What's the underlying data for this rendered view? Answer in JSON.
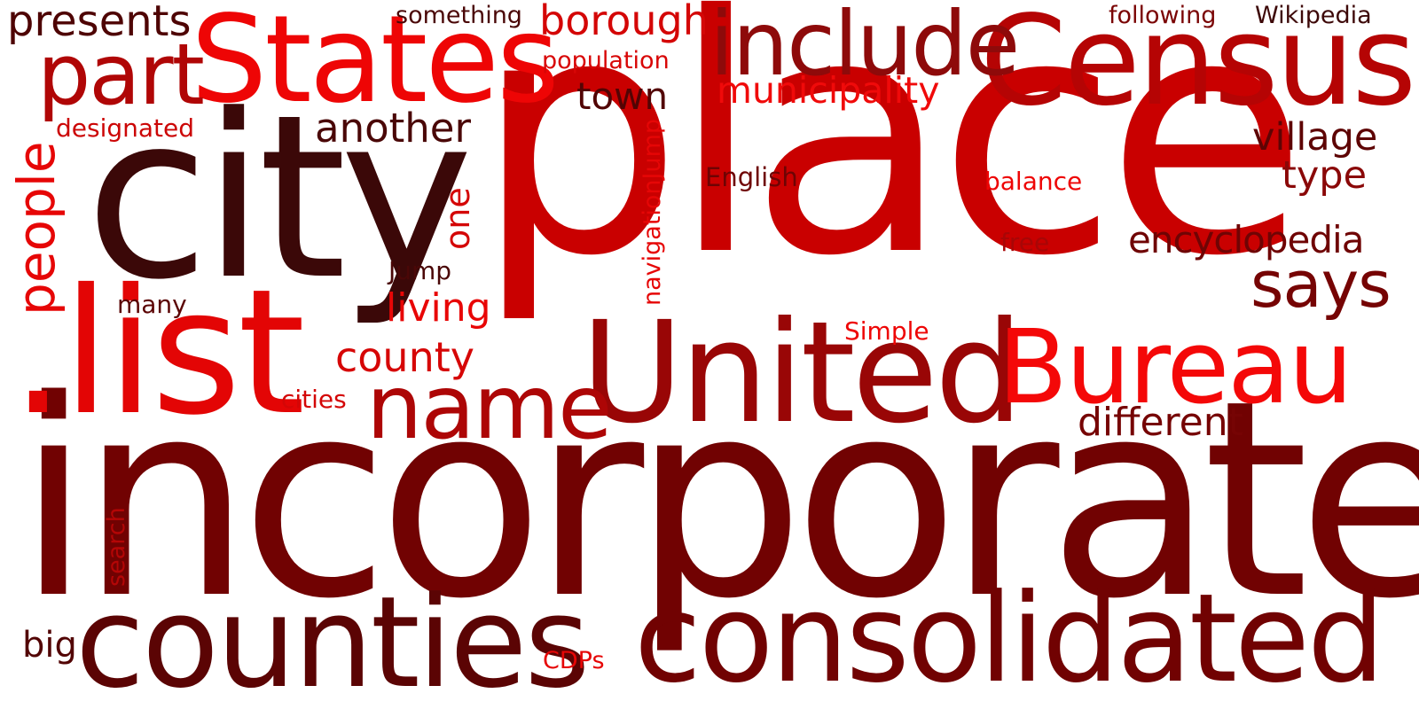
{
  "palette": {
    "dark_brown": "#3d0808",
    "maroon": "#6e0202",
    "dark_red": "#8e0a0a",
    "red": "#c30606",
    "bright_red": "#e50606",
    "scarlet": "#f00808"
  },
  "words": [
    {
      "key": "place",
      "text": "place",
      "color": "#c90000"
    },
    {
      "key": "incorporated",
      "text": "incorporated",
      "color": "#710202"
    },
    {
      "key": "city",
      "text": "city",
      "color": "#3b0808"
    },
    {
      "key": "states",
      "text": "States",
      "color": "#ee0505"
    },
    {
      "key": "census",
      "text": "Census",
      "color": "#b50404"
    },
    {
      "key": "united",
      "text": "United",
      "color": "#990606"
    },
    {
      "key": "list",
      "text": ".list",
      "color": "#e30505"
    },
    {
      "key": "bureau",
      "text": "Bureau",
      "color": "#f40808"
    },
    {
      "key": "consolidated",
      "text": "consolidated",
      "color": "#710202"
    },
    {
      "key": "counties",
      "text": "counties",
      "color": "#5b0404"
    },
    {
      "key": "include",
      "text": "include",
      "color": "#8e0a0a"
    },
    {
      "key": "name",
      "text": "name",
      "color": "#ad0606"
    },
    {
      "key": "part",
      "text": "part",
      "color": "#b00606"
    },
    {
      "key": "people",
      "text": "people",
      "color": "#e60606"
    },
    {
      "key": "says",
      "text": "says",
      "color": "#760404"
    },
    {
      "key": "presents",
      "text": "presents",
      "color": "#4e0404"
    },
    {
      "key": "borough",
      "text": "borough",
      "color": "#d40606"
    },
    {
      "key": "municipality",
      "text": "municipality",
      "color": "#f00a0a"
    },
    {
      "key": "another",
      "text": "another",
      "color": "#4a0707"
    },
    {
      "key": "town",
      "text": "town",
      "color": "#520404"
    },
    {
      "key": "village",
      "text": "village",
      "color": "#5e0404"
    },
    {
      "key": "type",
      "text": "type",
      "color": "#8a0808"
    },
    {
      "key": "encyclopedia",
      "text": "encyclopedia",
      "color": "#6f0404"
    },
    {
      "key": "county",
      "text": "county",
      "color": "#d60606"
    },
    {
      "key": "living",
      "text": "living",
      "color": "#e80606"
    },
    {
      "key": "different",
      "text": "different",
      "color": "#760404"
    },
    {
      "key": "one",
      "text": "one",
      "color": "#d40606"
    },
    {
      "key": "something",
      "text": "something",
      "color": "#4a0707"
    },
    {
      "key": "population",
      "text": "population",
      "color": "#d80606"
    },
    {
      "key": "following",
      "text": "following",
      "color": "#7a0404"
    },
    {
      "key": "wikipedia",
      "text": "Wikipedia",
      "color": "#3d0808"
    },
    {
      "key": "designated",
      "text": "designated",
      "color": "#cc0606"
    },
    {
      "key": "english",
      "text": "English",
      "color": "#6e0404"
    },
    {
      "key": "balance",
      "text": "balance",
      "color": "#ee0505"
    },
    {
      "key": "free",
      "text": "free",
      "color": "#a80606"
    },
    {
      "key": "navigationjump",
      "text": "navigationJump",
      "color": "#e60606"
    },
    {
      "key": "jump",
      "text": "Jump",
      "color": "#4a0707"
    },
    {
      "key": "many",
      "text": "many",
      "color": "#5b0404"
    },
    {
      "key": "simple",
      "text": "Simple",
      "color": "#ee0505"
    },
    {
      "key": "cities",
      "text": "cities",
      "color": "#d40606"
    },
    {
      "key": "search",
      "text": "search",
      "color": "#b40606"
    },
    {
      "key": "big",
      "text": "big",
      "color": "#520404"
    },
    {
      "key": "cdps",
      "text": "CDPs",
      "color": "#e60606"
    }
  ]
}
